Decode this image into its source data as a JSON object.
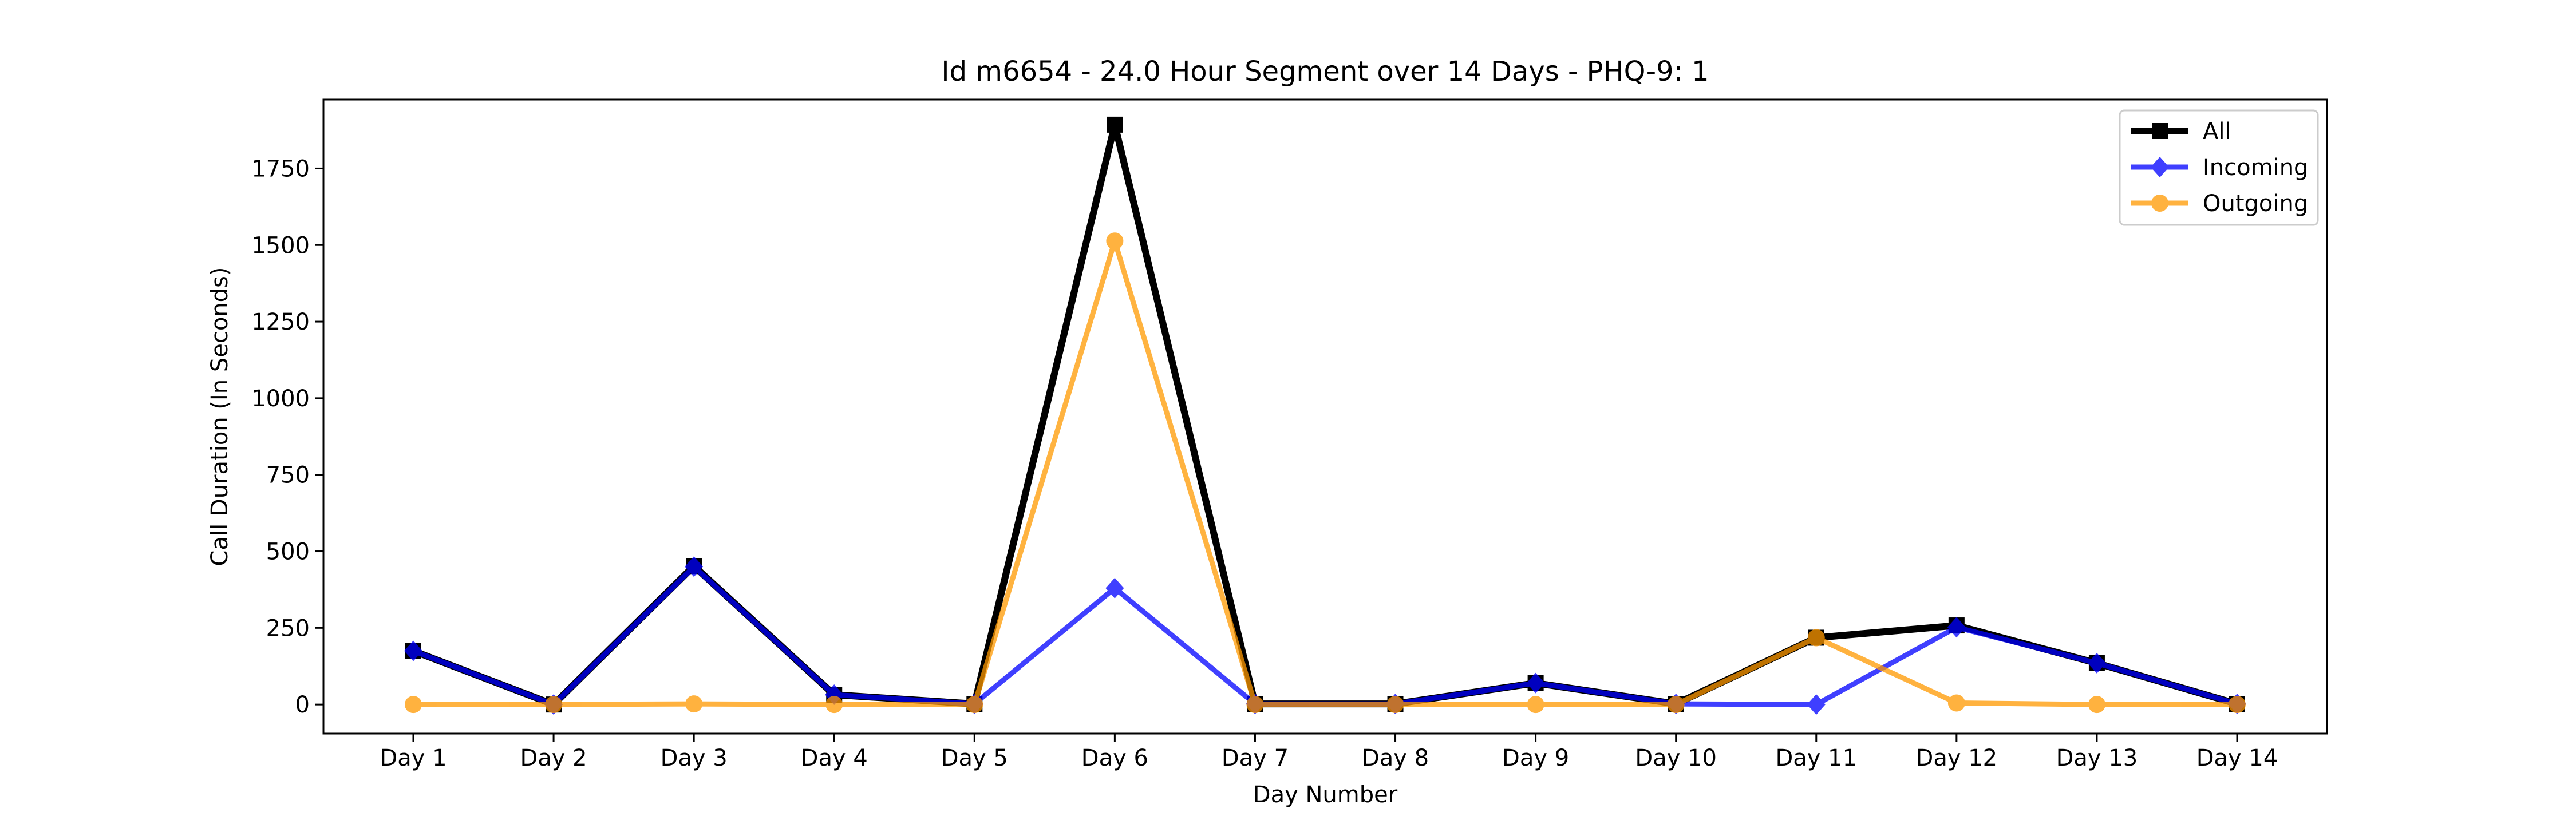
{
  "chart_data": {
    "type": "line",
    "title": "Id m6654 - 24.0 Hour Segment over 14 Days - PHQ-9: 1",
    "xlabel": "Day Number",
    "ylabel": "Call Duration (In Seconds)",
    "categories": [
      "Day 1",
      "Day 2",
      "Day 3",
      "Day 4",
      "Day 5",
      "Day 6",
      "Day 7",
      "Day 8",
      "Day 9",
      "Day 10",
      "Day 11",
      "Day 12",
      "Day 13",
      "Day 14"
    ],
    "ylim": [
      -95,
      1975
    ],
    "yticks": [
      0,
      250,
      500,
      750,
      1000,
      1250,
      1500,
      1750
    ],
    "grid": false,
    "legend_position": "top-right",
    "series": [
      {
        "name": "All",
        "color": "#000000",
        "marker": "square",
        "values": [
          175,
          0,
          452,
          32,
          2,
          1893,
          2,
          2,
          70,
          2,
          218,
          258,
          135,
          2
        ]
      },
      {
        "name": "Incoming",
        "color": "#0000ff",
        "marker": "diamond",
        "values": [
          175,
          0,
          450,
          32,
          2,
          380,
          2,
          2,
          70,
          2,
          0,
          252,
          135,
          2
        ]
      },
      {
        "name": "Outgoing",
        "color": "#ff9900",
        "marker": "circle",
        "values": [
          0,
          0,
          2,
          0,
          0,
          1513,
          0,
          0,
          0,
          0,
          218,
          5,
          0,
          0
        ]
      }
    ]
  }
}
